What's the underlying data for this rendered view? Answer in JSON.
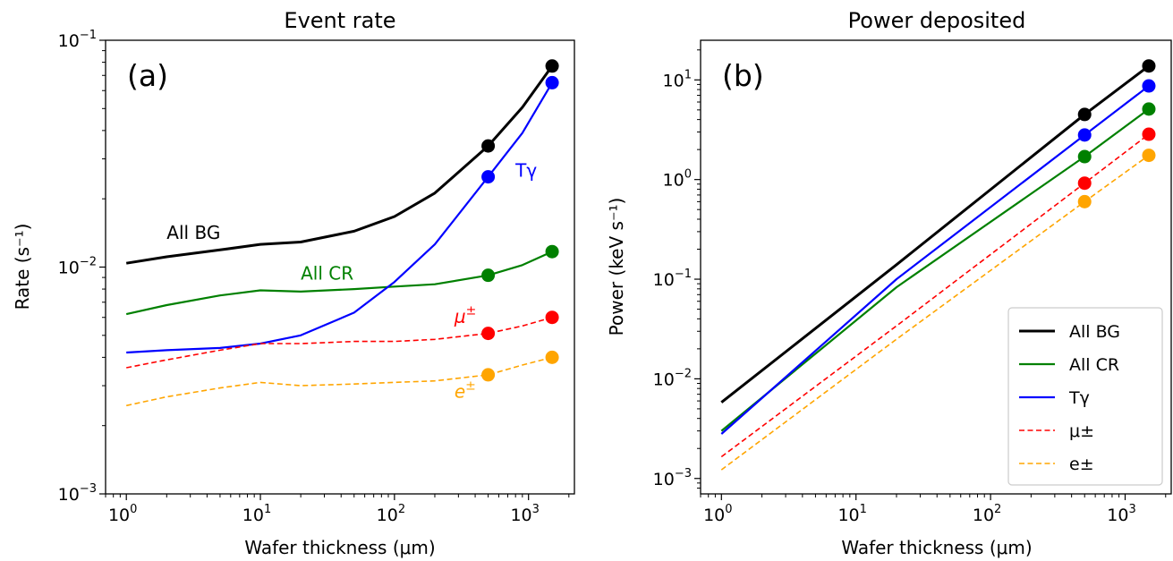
{
  "chart_data": [
    {
      "type": "line",
      "title": "Event rate",
      "panel_label": "(a)",
      "xlabel": "Wafer thickness (μm)",
      "ylabel": "Rate (s⁻¹)",
      "xscale": "log",
      "yscale": "log",
      "xlim": [
        0.7,
        2200
      ],
      "ylim": [
        0.001,
        0.1
      ],
      "xticks": [
        {
          "value": 1,
          "base": "10",
          "exp": "0"
        },
        {
          "value": 10,
          "base": "10",
          "exp": "1"
        },
        {
          "value": 100,
          "base": "10",
          "exp": "2"
        },
        {
          "value": 1000,
          "base": "10",
          "exp": "3"
        }
      ],
      "yticks": [
        {
          "value": 0.001,
          "base": "10",
          "exp": "−3"
        },
        {
          "value": 0.01,
          "base": "10",
          "exp": "−2"
        },
        {
          "value": 0.1,
          "base": "10",
          "exp": "−1"
        }
      ],
      "legend": "none",
      "series": [
        {
          "name": "All BG",
          "label_text": "All BG",
          "label_at": [
            2,
            0.0133
          ],
          "color": "#000000",
          "dash": "solid",
          "width": 3,
          "x": [
            1,
            2,
            5,
            10,
            20,
            50,
            100,
            200,
            500,
            900,
            1500
          ],
          "y": [
            0.0104,
            0.0111,
            0.0119,
            0.0126,
            0.0129,
            0.0144,
            0.0167,
            0.0212,
            0.0342,
            0.0506,
            0.077
          ],
          "markers_x": [
            500,
            1500
          ],
          "markers_y": [
            0.0342,
            0.077
          ]
        },
        {
          "name": "All CR",
          "label_text": "All CR",
          "label_at": [
            20,
            0.0088
          ],
          "color": "#008000",
          "dash": "solid",
          "width": 2.2,
          "x": [
            1,
            2,
            5,
            10,
            20,
            50,
            100,
            200,
            500,
            900,
            1500
          ],
          "y": [
            0.0062,
            0.0068,
            0.0075,
            0.0079,
            0.0078,
            0.008,
            0.0082,
            0.0084,
            0.0092,
            0.0102,
            0.0117
          ],
          "markers_x": [
            500,
            1500
          ],
          "markers_y": [
            0.0092,
            0.0117
          ]
        },
        {
          "name": "Tγ",
          "label_text": "Tγ",
          "label_at": [
            800,
            0.025
          ],
          "color": "#0000ff",
          "dash": "solid",
          "width": 2.2,
          "x": [
            1,
            2,
            5,
            10,
            20,
            50,
            100,
            200,
            500,
            900,
            1500
          ],
          "y": [
            0.0042,
            0.0043,
            0.0044,
            0.0046,
            0.005,
            0.0063,
            0.0086,
            0.0126,
            0.025,
            0.039,
            0.065
          ],
          "markers_x": [
            500,
            1500
          ],
          "markers_y": [
            0.025,
            0.065
          ]
        },
        {
          "name": "μ±",
          "label_text": "μ",
          "label_sup": "±",
          "label_italic": true,
          "label_at": [
            280,
            0.0057
          ],
          "color": "#ff0000",
          "dash": "dashed",
          "width": 1.6,
          "x": [
            1,
            2,
            5,
            10,
            20,
            50,
            100,
            200,
            500,
            900,
            1500
          ],
          "y": [
            0.0036,
            0.0039,
            0.0043,
            0.0046,
            0.0046,
            0.0047,
            0.0047,
            0.0048,
            0.0051,
            0.0055,
            0.006
          ],
          "markers_x": [
            500,
            1500
          ],
          "markers_y": [
            0.0051,
            0.006
          ]
        },
        {
          "name": "e±",
          "label_text": "e",
          "label_sup": "±",
          "label_italic": true,
          "label_at": [
            280,
            0.00265
          ],
          "color": "#ffa500",
          "dash": "dashed",
          "width": 1.6,
          "x": [
            1,
            2,
            5,
            10,
            20,
            50,
            100,
            200,
            500,
            900,
            1500
          ],
          "y": [
            0.00245,
            0.00268,
            0.00293,
            0.0031,
            0.003,
            0.00305,
            0.0031,
            0.00315,
            0.00335,
            0.0037,
            0.004
          ],
          "markers_x": [
            500,
            1500
          ],
          "markers_y": [
            0.00335,
            0.004
          ]
        }
      ]
    },
    {
      "type": "line",
      "title": "Power deposited",
      "panel_label": "(b)",
      "xlabel": "Wafer thickness (μm)",
      "ylabel": "Power (keV s⁻¹)",
      "xscale": "log",
      "yscale": "log",
      "xlim": [
        0.7,
        2200
      ],
      "ylim": [
        0.0007,
        25
      ],
      "xticks": [
        {
          "value": 1,
          "base": "10",
          "exp": "0"
        },
        {
          "value": 10,
          "base": "10",
          "exp": "1"
        },
        {
          "value": 100,
          "base": "10",
          "exp": "2"
        },
        {
          "value": 1000,
          "base": "10",
          "exp": "3"
        }
      ],
      "yticks": [
        {
          "value": 0.001,
          "base": "10",
          "exp": "−3"
        },
        {
          "value": 0.01,
          "base": "10",
          "exp": "−2"
        },
        {
          "value": 0.1,
          "base": "10",
          "exp": "−1"
        },
        {
          "value": 1,
          "base": "10",
          "exp": "0"
        },
        {
          "value": 10,
          "base": "10",
          "exp": "1"
        }
      ],
      "legend": "lower-right",
      "series": [
        {
          "name": "All BG",
          "legend_label": "All BG",
          "color": "#000000",
          "dash": "solid",
          "width": 3,
          "x": [
            1,
            20,
            500,
            1500
          ],
          "y": [
            0.0058,
            0.14,
            4.5,
            13.8
          ],
          "markers_x": [
            500,
            1500
          ],
          "markers_y": [
            4.5,
            13.8
          ]
        },
        {
          "name": "All CR",
          "legend_label": "All CR",
          "color": "#008000",
          "dash": "solid",
          "width": 2.2,
          "x": [
            1,
            20,
            500,
            1500
          ],
          "y": [
            0.003,
            0.083,
            1.7,
            5.1
          ],
          "markers_x": [
            500,
            1500
          ],
          "markers_y": [
            1.7,
            5.1
          ]
        },
        {
          "name": "Tγ",
          "legend_label": "Tγ",
          "color": "#0000ff",
          "dash": "solid",
          "width": 2.2,
          "x": [
            1,
            20,
            500,
            1500
          ],
          "y": [
            0.0028,
            0.1,
            2.8,
            8.7
          ],
          "markers_x": [
            500,
            1500
          ],
          "markers_y": [
            2.8,
            8.7
          ]
        },
        {
          "name": "μ±",
          "legend_label": "μ±",
          "color": "#ff0000",
          "dash": "dashed",
          "width": 1.6,
          "x": [
            1,
            20,
            500,
            1500
          ],
          "y": [
            0.00165,
            0.034,
            0.92,
            2.85
          ],
          "markers_x": [
            500,
            1500
          ],
          "markers_y": [
            0.92,
            2.85
          ]
        },
        {
          "name": "e±",
          "legend_label": "e±",
          "color": "#ffa500",
          "dash": "dashed",
          "width": 1.6,
          "x": [
            1,
            20,
            500,
            1500
          ],
          "y": [
            0.00122,
            0.025,
            0.6,
            1.75
          ],
          "markers_x": [
            500,
            1500
          ],
          "markers_y": [
            0.6,
            1.75
          ]
        }
      ]
    }
  ]
}
